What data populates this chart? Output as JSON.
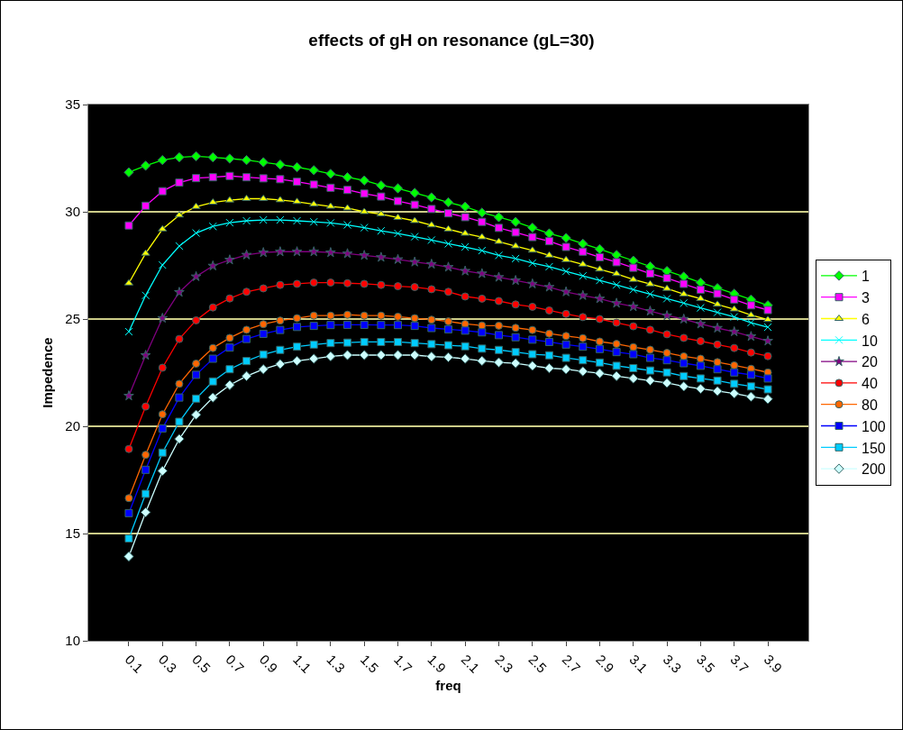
{
  "chart_data": {
    "type": "line",
    "title": "effects of gH on resonance (gL=30)",
    "xlabel": "freq",
    "ylabel": "Impedence",
    "categories": [
      "0.1",
      null,
      "0.3",
      null,
      "0.5",
      null,
      "0.7",
      null,
      "0.9",
      null,
      "1.1",
      null,
      "1.3",
      null,
      "1.5",
      null,
      "1.7",
      null,
      "1.9",
      null,
      "2.1",
      null,
      "2.3",
      null,
      "2.5",
      null,
      "2.7",
      null,
      "2.9",
      null,
      "3.1",
      null,
      "3.3",
      null,
      "3.5",
      null,
      "3.7",
      null,
      "3.9"
    ],
    "ylim": [
      10,
      35
    ],
    "yticks": [
      10,
      15,
      20,
      25,
      30,
      35
    ],
    "grid": "y",
    "legend": "right",
    "series": [
      {
        "name": "1",
        "color": "#00ff00",
        "marker": "diamond",
        "values": [
          31.84,
          32.15,
          32.41,
          32.54,
          32.59,
          32.54,
          32.48,
          32.41,
          32.31,
          32.2,
          32.08,
          31.94,
          31.77,
          31.61,
          31.46,
          31.23,
          31.09,
          30.88,
          30.67,
          30.44,
          30.24,
          29.96,
          29.75,
          29.53,
          29.26,
          28.99,
          28.78,
          28.51,
          28.26,
          27.99,
          27.72,
          27.45,
          27.24,
          26.98,
          26.7,
          26.44,
          26.18,
          25.91,
          25.64
        ]
      },
      {
        "name": "3",
        "color": "#ff00ff",
        "marker": "square",
        "values": [
          29.36,
          30.28,
          30.96,
          31.36,
          31.57,
          31.61,
          31.67,
          31.61,
          31.56,
          31.52,
          31.4,
          31.27,
          31.12,
          31.02,
          30.85,
          30.71,
          30.5,
          30.33,
          30.13,
          29.93,
          29.75,
          29.53,
          29.25,
          29.04,
          28.82,
          28.63,
          28.36,
          28.14,
          27.88,
          27.65,
          27.39,
          27.12,
          26.91,
          26.64,
          26.37,
          26.18,
          25.91,
          25.64,
          25.42
        ]
      },
      {
        "name": "6",
        "color": "#ffff00",
        "marker": "triangle",
        "values": [
          26.67,
          28.06,
          29.19,
          29.84,
          30.24,
          30.44,
          30.54,
          30.61,
          30.61,
          30.55,
          30.47,
          30.35,
          30.25,
          30.17,
          30.0,
          29.89,
          29.73,
          29.58,
          29.38,
          29.19,
          28.99,
          28.82,
          28.61,
          28.4,
          28.2,
          27.97,
          27.76,
          27.55,
          27.32,
          27.11,
          26.84,
          26.63,
          26.42,
          26.16,
          25.95,
          25.68,
          25.46,
          25.18,
          24.97
        ]
      },
      {
        "name": "10",
        "color": "#00ffff",
        "marker": "cross",
        "values": [
          24.41,
          26.1,
          27.52,
          28.4,
          29.01,
          29.32,
          29.49,
          29.58,
          29.62,
          29.62,
          29.58,
          29.53,
          29.48,
          29.39,
          29.26,
          29.11,
          28.99,
          28.84,
          28.68,
          28.51,
          28.36,
          28.19,
          27.97,
          27.82,
          27.61,
          27.44,
          27.22,
          27.01,
          26.8,
          26.59,
          26.37,
          26.16,
          25.95,
          25.74,
          25.52,
          25.31,
          25.1,
          24.83,
          24.62
        ]
      },
      {
        "name": "20",
        "color": "#800080",
        "marker": "star",
        "values": [
          21.42,
          23.31,
          25.04,
          26.25,
          26.98,
          27.48,
          27.76,
          27.99,
          28.1,
          28.14,
          28.14,
          28.14,
          28.1,
          28.05,
          27.97,
          27.88,
          27.78,
          27.66,
          27.56,
          27.42,
          27.24,
          27.12,
          26.95,
          26.8,
          26.64,
          26.49,
          26.27,
          26.1,
          25.95,
          25.74,
          25.58,
          25.37,
          25.16,
          25.0,
          24.77,
          24.58,
          24.41,
          24.19,
          23.98
        ]
      },
      {
        "name": "40",
        "color": "#ff0000",
        "marker": "circle",
        "values": [
          18.94,
          20.92,
          22.73,
          24.07,
          24.94,
          25.54,
          25.96,
          26.27,
          26.43,
          26.59,
          26.64,
          26.7,
          26.7,
          26.67,
          26.64,
          26.59,
          26.53,
          26.49,
          26.39,
          26.27,
          26.05,
          25.95,
          25.84,
          25.68,
          25.57,
          25.4,
          25.24,
          25.09,
          25.0,
          24.83,
          24.66,
          24.5,
          24.29,
          24.12,
          23.97,
          23.81,
          23.65,
          23.44,
          23.27
        ]
      },
      {
        "name": "80",
        "color": "#ff6600",
        "marker": "circle",
        "values": [
          16.65,
          18.67,
          20.56,
          21.98,
          22.92,
          23.65,
          24.12,
          24.5,
          24.76,
          24.93,
          25.04,
          25.16,
          25.16,
          25.2,
          25.16,
          25.16,
          25.11,
          25.04,
          24.97,
          24.89,
          24.77,
          24.7,
          24.69,
          24.59,
          24.49,
          24.32,
          24.21,
          24.11,
          23.95,
          23.84,
          23.69,
          23.57,
          23.42,
          23.26,
          23.15,
          22.99,
          22.84,
          22.68,
          22.51
        ]
      },
      {
        "name": "100",
        "color": "#0000ff",
        "marker": "square",
        "values": [
          15.95,
          17.97,
          19.9,
          21.34,
          22.4,
          23.15,
          23.67,
          24.07,
          24.31,
          24.49,
          24.63,
          24.68,
          24.72,
          24.73,
          24.73,
          24.72,
          24.72,
          24.68,
          24.58,
          24.52,
          24.46,
          24.38,
          24.25,
          24.15,
          24.04,
          23.93,
          23.81,
          23.71,
          23.6,
          23.46,
          23.36,
          23.19,
          23.08,
          22.94,
          22.82,
          22.66,
          22.51,
          22.4,
          22.23
        ]
      },
      {
        "name": "150",
        "color": "#00ccff",
        "marker": "square",
        "values": [
          14.77,
          16.85,
          18.77,
          20.21,
          21.29,
          22.09,
          22.66,
          23.04,
          23.35,
          23.56,
          23.71,
          23.81,
          23.88,
          23.9,
          23.93,
          23.93,
          23.93,
          23.88,
          23.83,
          23.78,
          23.73,
          23.62,
          23.56,
          23.46,
          23.36,
          23.31,
          23.19,
          23.08,
          22.97,
          22.82,
          22.71,
          22.6,
          22.51,
          22.34,
          22.23,
          22.13,
          21.98,
          21.86,
          21.72
        ]
      },
      {
        "name": "200",
        "color": "#ccffff",
        "marker": "diamond",
        "values": [
          13.93,
          15.99,
          17.92,
          19.41,
          20.54,
          21.34,
          21.92,
          22.34,
          22.66,
          22.9,
          23.05,
          23.15,
          23.26,
          23.32,
          23.32,
          23.32,
          23.32,
          23.32,
          23.25,
          23.22,
          23.15,
          23.05,
          22.98,
          22.94,
          22.82,
          22.71,
          22.66,
          22.56,
          22.47,
          22.34,
          22.23,
          22.13,
          22.02,
          21.86,
          21.75,
          21.64,
          21.53,
          21.38,
          21.27
        ]
      }
    ]
  }
}
